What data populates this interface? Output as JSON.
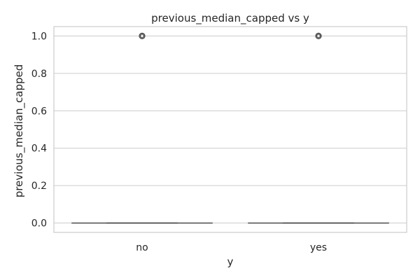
{
  "chart_data": {
    "type": "box",
    "title": "previous_median_capped vs y",
    "xlabel": "y",
    "ylabel": "previous_median_capped",
    "categories": [
      "no",
      "yes"
    ],
    "ylim": [
      -0.05,
      1.05
    ],
    "yticks": [
      0.0,
      0.2,
      0.4,
      0.6,
      0.8,
      1.0
    ],
    "ytick_labels": [
      "0.0",
      "0.2",
      "0.4",
      "0.6",
      "0.8",
      "1.0"
    ],
    "grid": true,
    "boxes": [
      {
        "category": "no",
        "min": 0.0,
        "q1": 0.0,
        "median": 0.0,
        "q3": 0.0,
        "max": 0.0,
        "outliers": [
          1.0
        ]
      },
      {
        "category": "yes",
        "min": 0.0,
        "q1": 0.0,
        "median": 0.0,
        "q3": 0.0,
        "max": 0.0,
        "outliers": [
          1.0
        ]
      }
    ],
    "colors": {
      "box": "#4d4d4d",
      "grid": "#cccccc",
      "text": "#262626"
    }
  }
}
